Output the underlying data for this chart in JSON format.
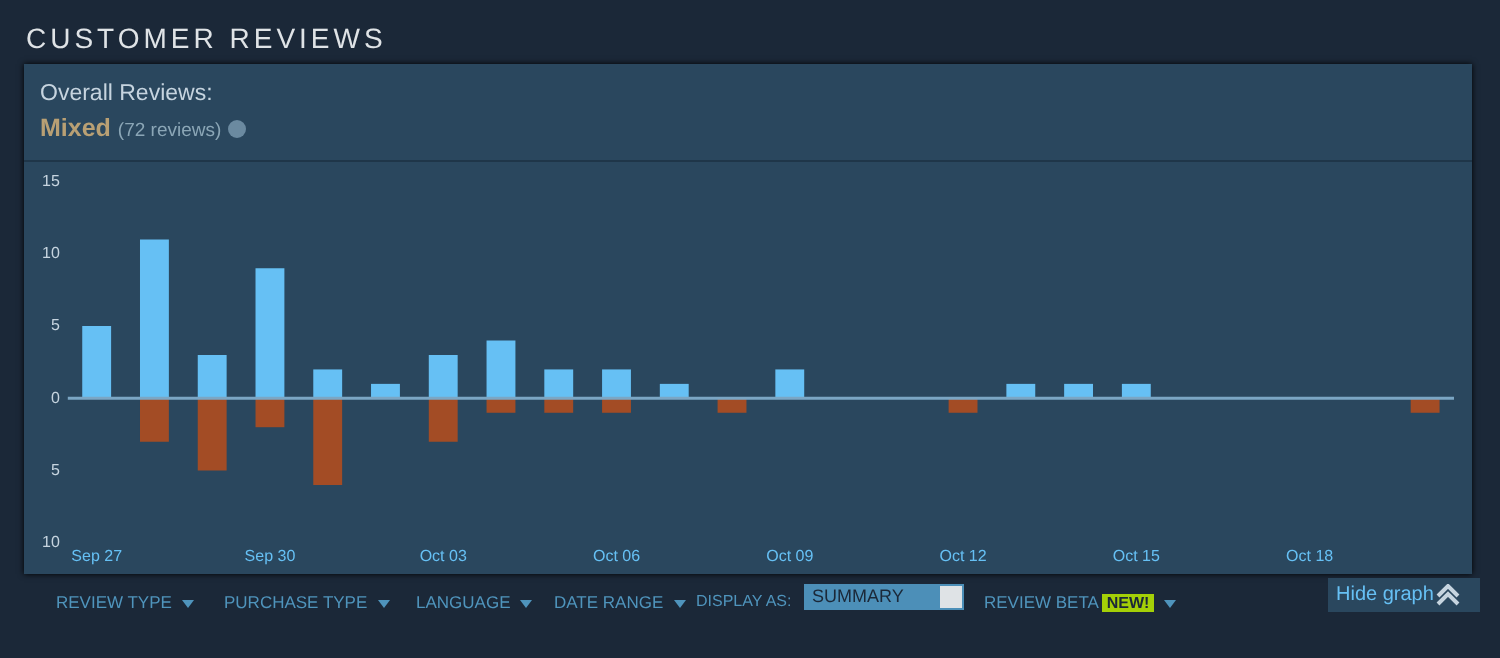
{
  "chart_data": {
    "type": "bar",
    "title": "CUSTOMER REVIEWS",
    "subtitle": "Overall Reviews:",
    "annotations": [
      "Mixed",
      "(72 reviews)",
      "REVIEW TYPE",
      "PURCHASE TYPE",
      "LANGUAGE",
      "DATE RANGE",
      "DISPLAY AS:",
      "SUMMARY",
      "REVIEW BETA",
      "NEW!",
      "Hide graph"
    ],
    "categories": [
      "Sep 27",
      null,
      null,
      "Sep 30",
      null,
      null,
      "Oct 03",
      null,
      null,
      "Oct 06",
      null,
      null,
      "Oct 09",
      null,
      null,
      "Oct 12",
      null,
      null,
      "Oct 15",
      null,
      null,
      "Oct 18",
      null,
      null
    ],
    "stacked": true,
    "series": [
      {
        "color": "#66c0f4",
        "values": [
          5,
          11,
          3,
          9,
          2,
          1,
          3,
          4,
          2,
          2,
          1,
          0,
          2,
          0,
          0,
          0,
          1,
          1,
          1,
          0,
          0,
          0,
          0,
          0
        ]
      },
      {
        "color": "#a34c25",
        "values": [
          0,
          -3,
          -5,
          -2,
          -6,
          0,
          -3,
          -1,
          -1,
          -1,
          0,
          -1,
          0,
          0,
          0,
          -1,
          0,
          0,
          0,
          0,
          0,
          0,
          0,
          -1
        ]
      }
    ],
    "ylim": [
      -10,
      15
    ],
    "yticks": [
      {
        "value": -10,
        "label": "10"
      },
      {
        "value": -5,
        "label": "5"
      },
      0,
      5,
      10,
      15
    ],
    "ref_lines": [
      {
        "axis": "y",
        "value": 0,
        "color": "#7ba6c4"
      }
    ],
    "grid": false,
    "legend": false
  }
}
